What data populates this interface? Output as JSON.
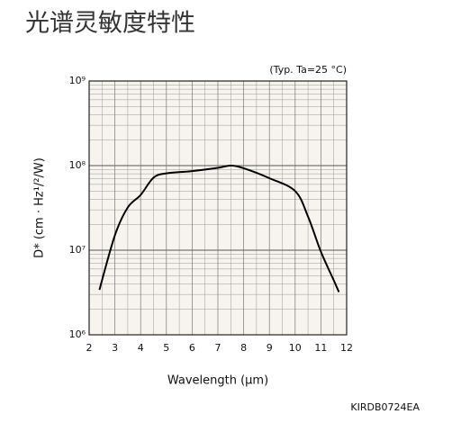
{
  "chart_data": {
    "type": "line",
    "title": "光谱灵敏度特性",
    "annotation": "(Typ. Ta=25 °C)",
    "code": "KIRDB0724EA",
    "x_label": "Wavelength (μm)",
    "y_label": "D* (cm · Hz¹/²/W)",
    "x": [
      2.4,
      3.0,
      3.5,
      4.0,
      4.5,
      5.0,
      6.0,
      7.0,
      7.5,
      8.0,
      9.0,
      10.0,
      10.5,
      11.0,
      11.5,
      11.7
    ],
    "values": [
      3400000,
      15000000,
      32000000,
      45000000,
      72000000,
      81000000,
      86000000,
      94000000,
      100000000,
      93000000,
      71000000,
      50000000,
      25000000,
      9600000,
      4400000,
      3200000
    ],
    "color": "#000000",
    "xlim": [
      2,
      12
    ],
    "xticks": [
      2,
      3,
      4,
      5,
      6,
      7,
      8,
      9,
      10,
      11,
      12
    ],
    "ylim": [
      1000000,
      1000000000
    ],
    "log_y": true,
    "yticks": [
      {
        "value": 1000000,
        "label": "10⁶"
      },
      {
        "value": 10000000,
        "label": "10⁷"
      },
      {
        "value": 100000000,
        "label": "10⁸"
      },
      {
        "value": 1000000000,
        "label": "10⁹"
      }
    ],
    "grid": true,
    "minor_grid": true
  }
}
